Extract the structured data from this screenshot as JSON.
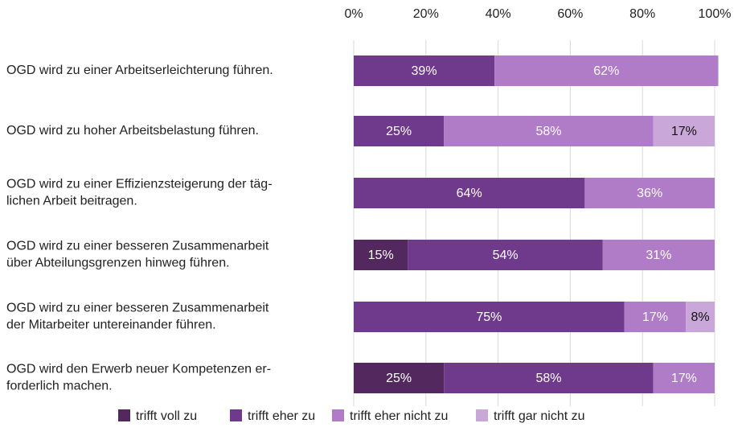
{
  "chart_data": {
    "type": "stacked-barh",
    "categories": [
      [
        "OGD wird zu einer Arbeitserleichterung führen."
      ],
      [
        "OGD wird zu hoher Arbeitsbelastung führen."
      ],
      [
        "OGD wird zu einer Effizienzsteigerung der täg-",
        "lichen Arbeit beitragen."
      ],
      [
        "OGD wird zu einer besseren Zusammenarbeit",
        "über Abteilungsgrenzen hinweg führen."
      ],
      [
        "OGD wird zu einer besseren Zusammenarbeit",
        "der Mitarbeiter untereinander führen."
      ],
      [
        "OGD wird den Erwerb neuer Kompetenzen er-",
        "forderlich machen."
      ]
    ],
    "series": [
      {
        "name": "trifft voll zu",
        "color": "#52285f",
        "values": [
          null,
          null,
          null,
          15,
          null,
          25
        ],
        "value_labels": [
          null,
          null,
          null,
          "15%",
          null,
          "25%"
        ]
      },
      {
        "name": "trifft eher zu",
        "color": "#703a8c",
        "values": [
          39,
          25,
          64,
          54,
          75,
          58
        ],
        "value_labels": [
          "39%",
          "25%",
          "64%",
          "54%",
          "75%",
          "58%"
        ]
      },
      {
        "name": "trifft eher nicht zu",
        "color": "#b07cc8",
        "values": [
          62,
          58,
          36,
          31,
          17,
          17
        ],
        "value_labels": [
          "62%",
          "58%",
          "36%",
          "31%",
          "17%",
          "17%"
        ]
      },
      {
        "name": "trifft gar nicht zu",
        "color": "#c9a7d9",
        "values": [
          null,
          17,
          null,
          null,
          8,
          null
        ],
        "value_labels": [
          null,
          "17%",
          null,
          null,
          "8%",
          null
        ]
      }
    ],
    "xlim": [
      0,
      100
    ],
    "xticks": [
      {
        "value": 0,
        "label": "0%"
      },
      {
        "value": 20,
        "label": "20%"
      },
      {
        "value": 40,
        "label": "40%"
      },
      {
        "value": 60,
        "label": "60%"
      },
      {
        "value": 80,
        "label": "80%"
      },
      {
        "value": 100,
        "label": "100%"
      }
    ],
    "grid": true
  }
}
